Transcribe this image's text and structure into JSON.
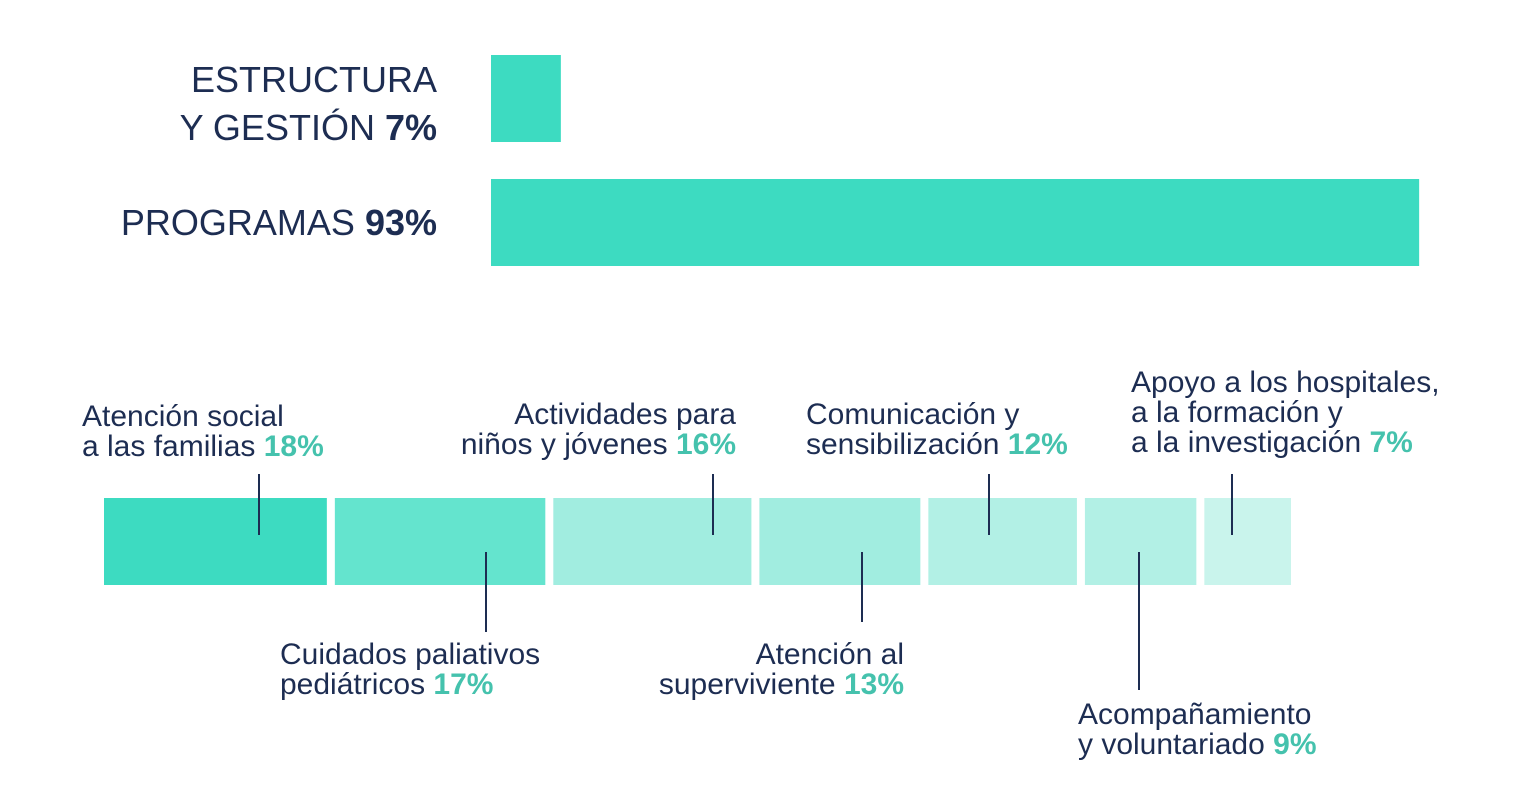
{
  "chart_data": [
    {
      "type": "bar",
      "orientation": "horizontal",
      "max": 100,
      "color": "#3ddbc1",
      "label_color": "#1d2d52",
      "items": [
        {
          "lines": [
            "ESTRUCTURA",
            "Y GESTIÓN"
          ],
          "pct_label": "7%",
          "value": 7
        },
        {
          "lines": [
            "PROGRAMAS"
          ],
          "pct_label": "93%",
          "value": 93
        }
      ]
    },
    {
      "type": "bar",
      "orientation": "horizontal-segmented",
      "pct_color": "#45c2ad",
      "segments": [
        {
          "lines": [
            "Atención social",
            "a las familias"
          ],
          "pct_label": "18%",
          "value": 18,
          "color": "#3ddbc1",
          "label_pos": "above"
        },
        {
          "lines": [
            "Cuidados paliativos",
            "pediátricos"
          ],
          "pct_label": "17%",
          "value": 17,
          "color": "#64e4ce",
          "label_pos": "below"
        },
        {
          "lines": [
            "Actividades para",
            "niños y jóvenes"
          ],
          "pct_label": "16%",
          "value": 16,
          "color": "#a1ede0",
          "label_pos": "above"
        },
        {
          "lines": [
            "Atención al",
            "superviviente"
          ],
          "pct_label": "13%",
          "value": 13,
          "color": "#a1ede0",
          "label_pos": "below"
        },
        {
          "lines": [
            "Comunicación y",
            "sensibilización"
          ],
          "pct_label": "12%",
          "value": 12,
          "color": "#b2f0e5",
          "label_pos": "above"
        },
        {
          "lines": [
            "Acompañamiento",
            "y voluntariado"
          ],
          "pct_label": "9%",
          "value": 9,
          "color": "#b2f0e5",
          "label_pos": "below"
        },
        {
          "lines": [
            "Apoyo a los hospitales,",
            "a la formación y",
            "a la investigación"
          ],
          "pct_label": "7%",
          "value": 7,
          "color": "#c9f4ec",
          "label_pos": "above"
        }
      ]
    }
  ]
}
